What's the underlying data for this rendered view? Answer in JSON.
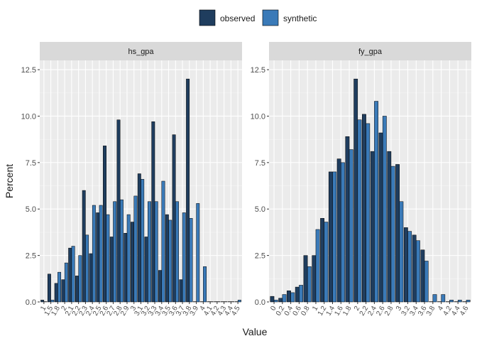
{
  "chart_data": {
    "type": "bar",
    "xlabel": "Value",
    "ylabel": "Percent",
    "ylim": [
      0,
      13
    ],
    "yticks": [
      0.0,
      2.5,
      5.0,
      7.5,
      10.0,
      12.5
    ],
    "ytick_labels": [
      "0.0",
      "2.5",
      "5.0",
      "7.5",
      "10.0",
      "12.5"
    ],
    "grid": true,
    "legend_position": "top",
    "legend": [
      {
        "name": "observed",
        "color": "#1f3d5e"
      },
      {
        "name": "synthetic",
        "color": "#3a7ab8"
      }
    ],
    "panels": [
      {
        "title": "hs_gpa",
        "categories": [
          "1",
          "1.5",
          "1.8",
          "2",
          "2.1",
          "2.2",
          "2.3",
          "2.4",
          "2.5",
          "2.6",
          "2.7",
          "2.8",
          "2.9",
          "3",
          "3.1",
          "3.2",
          "3.3",
          "3.4",
          "3.5",
          "3.6",
          "3.7",
          "3.8",
          "3.9",
          "4",
          "4.1",
          "4.2",
          "4.3",
          "4.4",
          "4.5"
        ],
        "series": [
          {
            "name": "observed",
            "values": [
              0.1,
              1.5,
              1.0,
              1.2,
              2.9,
              1.4,
              6.0,
              2.6,
              4.8,
              8.4,
              3.5,
              9.8,
              3.7,
              4.3,
              6.9,
              3.5,
              9.7,
              1.7,
              4.7,
              9.0,
              1.2,
              12.0,
              0.0,
              0.0,
              0.0,
              0.0,
              0.0,
              0.0,
              0.0
            ]
          },
          {
            "name": "synthetic",
            "values": [
              0.0,
              0.1,
              1.6,
              2.1,
              3.0,
              2.5,
              3.6,
              5.2,
              5.2,
              4.7,
              5.4,
              5.5,
              4.7,
              5.7,
              6.6,
              5.4,
              5.4,
              6.5,
              4.4,
              5.4,
              4.8,
              4.5,
              5.3,
              1.9,
              0.0,
              0.0,
              0.0,
              0.0,
              0.1
            ]
          }
        ]
      },
      {
        "title": "fy_gpa",
        "categories": [
          "0",
          "0.2",
          "0.4",
          "0.6",
          "0.8",
          "1",
          "1.2",
          "1.4",
          "1.6",
          "1.8",
          "2",
          "2.2",
          "2.4",
          "2.6",
          "2.8",
          "3",
          "3.2",
          "3.4",
          "3.6",
          "3.8",
          "4",
          "4.2",
          "4.4",
          "4.6"
        ],
        "series": [
          {
            "name": "observed",
            "values": [
              0.3,
              0.2,
              0.6,
              0.8,
              2.5,
              2.5,
              4.5,
              7.0,
              7.7,
              8.9,
              12.0,
              10.1,
              8.1,
              9.1,
              8.1,
              7.4,
              4.0,
              3.6,
              2.8,
              0.0,
              0.0,
              0.0,
              0.0,
              0.0
            ]
          },
          {
            "name": "synthetic",
            "values": [
              0.1,
              0.4,
              0.5,
              0.9,
              1.9,
              3.9,
              4.3,
              7.0,
              7.5,
              8.2,
              9.8,
              9.6,
              10.8,
              10.0,
              7.3,
              5.4,
              3.8,
              3.3,
              2.2,
              0.4,
              0.4,
              0.1,
              0.1,
              0.1
            ]
          }
        ]
      }
    ]
  }
}
